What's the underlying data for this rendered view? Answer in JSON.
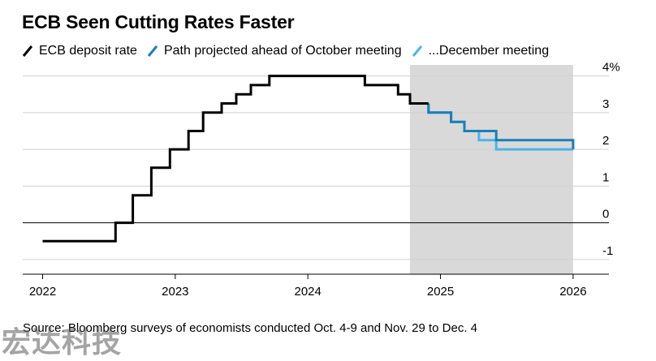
{
  "chart_data": {
    "type": "line",
    "title": "ECB Seen Cutting Rates Faster",
    "source": "Source: Bloomberg surveys of economists conducted Oct. 4-9 and Nov. 29 to Dec. 4",
    "xlabel": "",
    "ylabel": "",
    "xlim": [
      2021.85,
      2026.27
    ],
    "ylim": [
      -1.4,
      4.3
    ],
    "x_ticks": [
      2022,
      2023,
      2024,
      2025,
      2026
    ],
    "x_tick_labels": [
      "2022",
      "2023",
      "2024",
      "2025",
      "2026"
    ],
    "y_ticks": [
      4,
      3,
      2,
      1,
      0,
      -1
    ],
    "y_tick_labels": [
      "4%",
      "3",
      "2",
      "1",
      "0",
      "-1"
    ],
    "grid": true,
    "legend_position": "top-left",
    "shaded_region": {
      "x_start": 2024.77,
      "x_end": 2026.0,
      "color": "#d9d9d9"
    },
    "series": [
      {
        "name": "ECB deposit rate",
        "color": "#000000",
        "step": true,
        "points": [
          [
            2022.0,
            -0.5
          ],
          [
            2022.55,
            -0.5
          ],
          [
            2022.55,
            0.0
          ],
          [
            2022.68,
            0.0
          ],
          [
            2022.68,
            0.75
          ],
          [
            2022.82,
            0.75
          ],
          [
            2022.82,
            1.5
          ],
          [
            2022.96,
            1.5
          ],
          [
            2022.96,
            2.0
          ],
          [
            2023.1,
            2.0
          ],
          [
            2023.1,
            2.5
          ],
          [
            2023.21,
            2.5
          ],
          [
            2023.21,
            3.0
          ],
          [
            2023.35,
            3.0
          ],
          [
            2023.35,
            3.25
          ],
          [
            2023.46,
            3.25
          ],
          [
            2023.46,
            3.5
          ],
          [
            2023.57,
            3.5
          ],
          [
            2023.57,
            3.75
          ],
          [
            2023.71,
            3.75
          ],
          [
            2023.71,
            4.0
          ],
          [
            2024.43,
            4.0
          ],
          [
            2024.43,
            3.75
          ],
          [
            2024.68,
            3.75
          ],
          [
            2024.68,
            3.5
          ],
          [
            2024.77,
            3.5
          ],
          [
            2024.77,
            3.25
          ],
          [
            2024.91,
            3.25
          ]
        ]
      },
      {
        "name": "Path projected ahead of October meeting",
        "color": "#1a7fb5",
        "step": true,
        "points": [
          [
            2024.91,
            3.25
          ],
          [
            2024.91,
            3.0
          ],
          [
            2025.08,
            3.0
          ],
          [
            2025.08,
            2.75
          ],
          [
            2025.18,
            2.75
          ],
          [
            2025.18,
            2.5
          ],
          [
            2025.42,
            2.5
          ],
          [
            2025.42,
            2.25
          ],
          [
            2026.0,
            2.25
          ],
          [
            2026.0,
            2.0
          ]
        ]
      },
      {
        "name": "...December meeting",
        "color": "#4cb5e6",
        "step": true,
        "points": [
          [
            2024.91,
            3.25
          ],
          [
            2024.91,
            3.0
          ],
          [
            2025.08,
            3.0
          ],
          [
            2025.08,
            2.75
          ],
          [
            2025.18,
            2.75
          ],
          [
            2025.18,
            2.5
          ],
          [
            2025.29,
            2.5
          ],
          [
            2025.29,
            2.25
          ],
          [
            2025.42,
            2.25
          ],
          [
            2025.42,
            2.0
          ],
          [
            2026.0,
            2.0
          ]
        ]
      }
    ]
  },
  "watermark": "宏达科技"
}
